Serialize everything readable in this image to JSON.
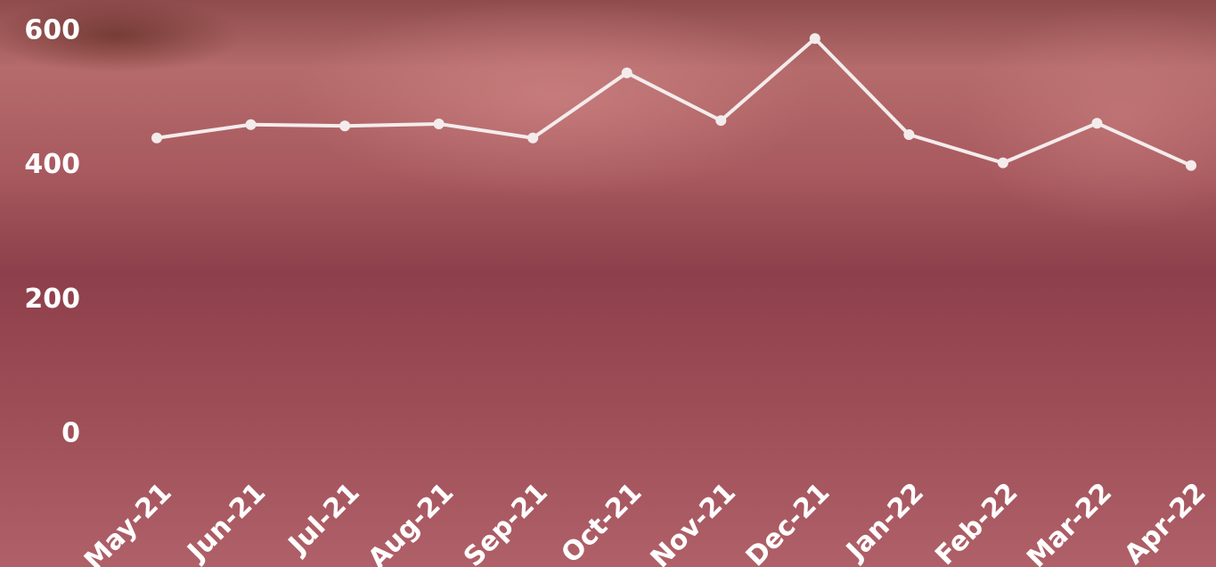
{
  "chart_data": {
    "type": "line",
    "categories": [
      "May-21",
      "Jun-21",
      "Jul-21",
      "Aug-21",
      "Sep-21",
      "Oct-21",
      "Nov-21",
      "Dec-21",
      "Jan-22",
      "Feb-22",
      "Mar-22",
      "Apr-22"
    ],
    "values": [
      441,
      461,
      459,
      462,
      441,
      538,
      467,
      589,
      446,
      404,
      463,
      400
    ],
    "color": "#f4ecec",
    "ylim": [
      0,
      600
    ],
    "yticks": [
      0,
      200,
      400,
      600
    ],
    "grid": false
  }
}
